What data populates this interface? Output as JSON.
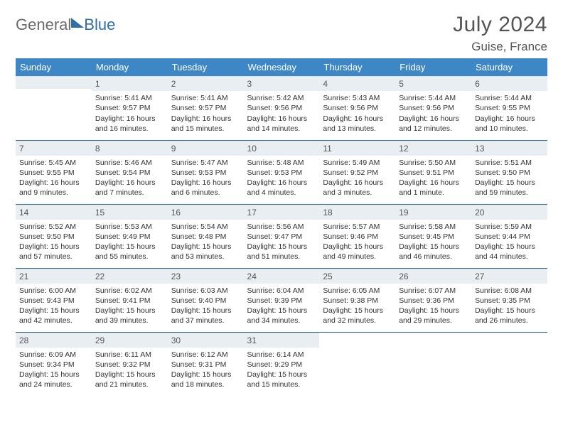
{
  "brand": {
    "a": "General",
    "b": "Blue"
  },
  "title": "July 2024",
  "location": "Guise, France",
  "header_bg": "#3d87c7",
  "rule_color": "#2f6fa8",
  "days_of_week": [
    "Sunday",
    "Monday",
    "Tuesday",
    "Wednesday",
    "Thursday",
    "Friday",
    "Saturday"
  ],
  "first_weekday_offset": 1,
  "cells": [
    {
      "n": 1,
      "sr": "5:41 AM",
      "ss": "9:57 PM",
      "dl": "16 hours and 16 minutes."
    },
    {
      "n": 2,
      "sr": "5:41 AM",
      "ss": "9:57 PM",
      "dl": "16 hours and 15 minutes."
    },
    {
      "n": 3,
      "sr": "5:42 AM",
      "ss": "9:56 PM",
      "dl": "16 hours and 14 minutes."
    },
    {
      "n": 4,
      "sr": "5:43 AM",
      "ss": "9:56 PM",
      "dl": "16 hours and 13 minutes."
    },
    {
      "n": 5,
      "sr": "5:44 AM",
      "ss": "9:56 PM",
      "dl": "16 hours and 12 minutes."
    },
    {
      "n": 6,
      "sr": "5:44 AM",
      "ss": "9:55 PM",
      "dl": "16 hours and 10 minutes."
    },
    {
      "n": 7,
      "sr": "5:45 AM",
      "ss": "9:55 PM",
      "dl": "16 hours and 9 minutes."
    },
    {
      "n": 8,
      "sr": "5:46 AM",
      "ss": "9:54 PM",
      "dl": "16 hours and 7 minutes."
    },
    {
      "n": 9,
      "sr": "5:47 AM",
      "ss": "9:53 PM",
      "dl": "16 hours and 6 minutes."
    },
    {
      "n": 10,
      "sr": "5:48 AM",
      "ss": "9:53 PM",
      "dl": "16 hours and 4 minutes."
    },
    {
      "n": 11,
      "sr": "5:49 AM",
      "ss": "9:52 PM",
      "dl": "16 hours and 3 minutes."
    },
    {
      "n": 12,
      "sr": "5:50 AM",
      "ss": "9:51 PM",
      "dl": "16 hours and 1 minute."
    },
    {
      "n": 13,
      "sr": "5:51 AM",
      "ss": "9:50 PM",
      "dl": "15 hours and 59 minutes."
    },
    {
      "n": 14,
      "sr": "5:52 AM",
      "ss": "9:50 PM",
      "dl": "15 hours and 57 minutes."
    },
    {
      "n": 15,
      "sr": "5:53 AM",
      "ss": "9:49 PM",
      "dl": "15 hours and 55 minutes."
    },
    {
      "n": 16,
      "sr": "5:54 AM",
      "ss": "9:48 PM",
      "dl": "15 hours and 53 minutes."
    },
    {
      "n": 17,
      "sr": "5:56 AM",
      "ss": "9:47 PM",
      "dl": "15 hours and 51 minutes."
    },
    {
      "n": 18,
      "sr": "5:57 AM",
      "ss": "9:46 PM",
      "dl": "15 hours and 49 minutes."
    },
    {
      "n": 19,
      "sr": "5:58 AM",
      "ss": "9:45 PM",
      "dl": "15 hours and 46 minutes."
    },
    {
      "n": 20,
      "sr": "5:59 AM",
      "ss": "9:44 PM",
      "dl": "15 hours and 44 minutes."
    },
    {
      "n": 21,
      "sr": "6:00 AM",
      "ss": "9:43 PM",
      "dl": "15 hours and 42 minutes."
    },
    {
      "n": 22,
      "sr": "6:02 AM",
      "ss": "9:41 PM",
      "dl": "15 hours and 39 minutes."
    },
    {
      "n": 23,
      "sr": "6:03 AM",
      "ss": "9:40 PM",
      "dl": "15 hours and 37 minutes."
    },
    {
      "n": 24,
      "sr": "6:04 AM",
      "ss": "9:39 PM",
      "dl": "15 hours and 34 minutes."
    },
    {
      "n": 25,
      "sr": "6:05 AM",
      "ss": "9:38 PM",
      "dl": "15 hours and 32 minutes."
    },
    {
      "n": 26,
      "sr": "6:07 AM",
      "ss": "9:36 PM",
      "dl": "15 hours and 29 minutes."
    },
    {
      "n": 27,
      "sr": "6:08 AM",
      "ss": "9:35 PM",
      "dl": "15 hours and 26 minutes."
    },
    {
      "n": 28,
      "sr": "6:09 AM",
      "ss": "9:34 PM",
      "dl": "15 hours and 24 minutes."
    },
    {
      "n": 29,
      "sr": "6:11 AM",
      "ss": "9:32 PM",
      "dl": "15 hours and 21 minutes."
    },
    {
      "n": 30,
      "sr": "6:12 AM",
      "ss": "9:31 PM",
      "dl": "15 hours and 18 minutes."
    },
    {
      "n": 31,
      "sr": "6:14 AM",
      "ss": "9:29 PM",
      "dl": "15 hours and 15 minutes."
    }
  ],
  "labels": {
    "sunrise": "Sunrise:",
    "sunset": "Sunset:",
    "daylight": "Daylight:"
  },
  "style": {
    "cell_font_size_pt": 8,
    "daynum_bg": "#e9eef2",
    "text_color": "#333333",
    "title_color": "#555555"
  }
}
